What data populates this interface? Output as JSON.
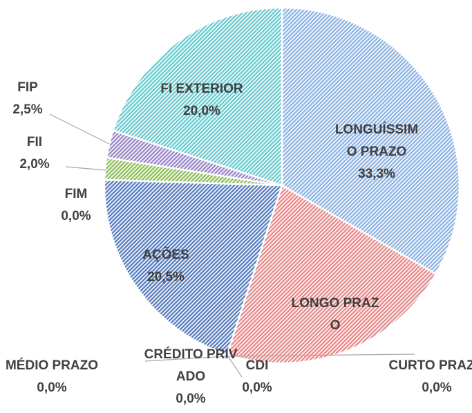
{
  "chart_data": {
    "type": "pie",
    "categories": [
      "LONGUÍSSIMO PRAZO",
      "LONGO PRAZO",
      "CURTO PRAZO",
      "CDI",
      "CRÉDITO PRIVADO",
      "MÉDIO PRAZO",
      "AÇÕES",
      "FIM",
      "FII",
      "FIP",
      "FI EXTERIOR"
    ],
    "values": [
      33.3,
      21.7,
      0,
      0,
      0,
      0,
      20.5,
      0,
      2.0,
      2.5,
      20.0
    ],
    "value_labels": [
      "33,3%",
      null,
      "0,0%",
      "0,0%",
      "0,0%",
      "0,0%",
      "20,5%",
      "0,0%",
      "2,0%",
      "2,5%",
      "20,0%"
    ],
    "colors": [
      "#8fb4e3",
      "#e88a8a",
      "#a5a5a5",
      "#ffc000",
      "#5b9bd5",
      "#70ad47",
      "#5a7fc0",
      "#9e480e",
      "#8fbf5a",
      "#9b87c9",
      "#6ccbd0"
    ]
  }
}
